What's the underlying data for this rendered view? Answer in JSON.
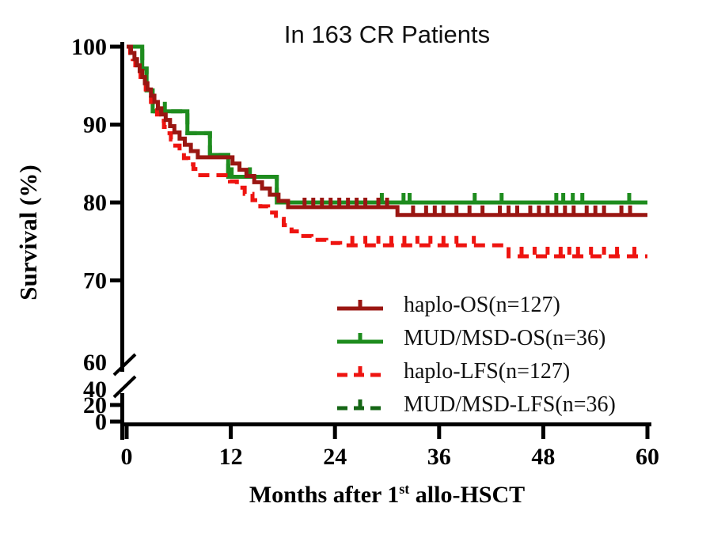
{
  "title": "In 163 CR Patients",
  "axes": {
    "ylabel": "Survival (%)",
    "xlabel_prefix": "Months after 1",
    "xlabel_sup": "st",
    "xlabel_suffix": " allo-HSCT",
    "x_ticks": [
      0,
      12,
      24,
      36,
      48,
      60
    ],
    "y_ticks_main": [
      100,
      90,
      80,
      70,
      60
    ],
    "y_ticks_compressed": [
      40,
      20,
      0
    ],
    "y_axis_break": true,
    "axis_color": "#000000",
    "background": "#ffffff"
  },
  "chart_data": {
    "type": "line",
    "subtype": "kaplan-meier-step",
    "title": "In 163 CR Patients",
    "xlabel": "Months after 1st allo-HSCT",
    "ylabel": "Survival (%)",
    "x_range": [
      0,
      60
    ],
    "y_range_displayed": [
      60,
      100
    ],
    "grid": false,
    "legend_position": "inside-bottom-right",
    "series": [
      {
        "label": "haplo-OS(n=127)",
        "color": "#9a1612",
        "dash": false,
        "steps": [
          [
            0,
            100
          ],
          [
            0.5,
            99.2
          ],
          [
            0.9,
            98.4
          ],
          [
            1.2,
            97.6
          ],
          [
            1.5,
            96.9
          ],
          [
            1.8,
            96.1
          ],
          [
            2.1,
            95.3
          ],
          [
            2.4,
            94.5
          ],
          [
            2.8,
            93.7
          ],
          [
            3.2,
            92.9
          ],
          [
            3.6,
            92.1
          ],
          [
            4.0,
            91.3
          ],
          [
            4.5,
            90.6
          ],
          [
            5.0,
            89.8
          ],
          [
            5.5,
            89.0
          ],
          [
            6.1,
            88.2
          ],
          [
            6.7,
            87.4
          ],
          [
            7.4,
            86.6
          ],
          [
            8.2,
            85.8
          ],
          [
            12.2,
            85.0
          ],
          [
            13.0,
            84.2
          ],
          [
            13.8,
            83.4
          ],
          [
            14.7,
            82.6
          ],
          [
            15.6,
            81.8
          ],
          [
            16.5,
            81.0
          ],
          [
            17.5,
            80.2
          ],
          [
            18.6,
            79.4
          ],
          [
            31.2,
            78.4
          ]
        ],
        "censors": [
          [
            20.5,
            79.4
          ],
          [
            21.5,
            79.4
          ],
          [
            22.5,
            79.4
          ],
          [
            23.5,
            79.4
          ],
          [
            24.5,
            79.4
          ],
          [
            25.5,
            79.4
          ],
          [
            26.5,
            79.4
          ],
          [
            27.5,
            79.4
          ],
          [
            29,
            79.4
          ],
          [
            30,
            79.4
          ],
          [
            33,
            78.4
          ],
          [
            34.5,
            78.4
          ],
          [
            35.5,
            78.4
          ],
          [
            36.5,
            78.4
          ],
          [
            38,
            78.4
          ],
          [
            39.5,
            78.4
          ],
          [
            41,
            78.4
          ],
          [
            43,
            78.4
          ],
          [
            44,
            78.4
          ],
          [
            45,
            78.4
          ],
          [
            46.5,
            78.4
          ],
          [
            47.5,
            78.4
          ],
          [
            48.5,
            78.4
          ],
          [
            49.5,
            78.4
          ],
          [
            50.5,
            78.4
          ],
          [
            51.5,
            78.4
          ],
          [
            53,
            78.4
          ],
          [
            54,
            78.4
          ],
          [
            55,
            78.4
          ],
          [
            57,
            78.4
          ],
          [
            58,
            78.4
          ]
        ]
      },
      {
        "label": "MUD/MSD-OS(n=36)",
        "color": "#1e8c1e",
        "dash": false,
        "steps": [
          [
            0,
            100
          ],
          [
            1.8,
            97.2
          ],
          [
            2.3,
            94.4
          ],
          [
            3.0,
            91.7
          ],
          [
            7.0,
            88.9
          ],
          [
            9.6,
            86.1
          ],
          [
            11.7,
            83.3
          ],
          [
            17.3,
            80.0
          ]
        ],
        "censors": [
          [
            4.4,
            91.7
          ],
          [
            12.1,
            83.3
          ],
          [
            14.2,
            83.3
          ],
          [
            29.4,
            80.0
          ],
          [
            31.9,
            80.0
          ],
          [
            32.6,
            80.0
          ],
          [
            40.1,
            80.0
          ],
          [
            43.2,
            80.0
          ],
          [
            49.5,
            80.0
          ],
          [
            50.3,
            80.0
          ],
          [
            51.4,
            80.0
          ],
          [
            52.5,
            80.0
          ],
          [
            57.9,
            80.0
          ]
        ]
      },
      {
        "label": "haplo-LFS(n=127)",
        "color": "#ee1410",
        "dash": true,
        "steps": [
          [
            0,
            100
          ],
          [
            0.4,
            99.2
          ],
          [
            0.7,
            98.4
          ],
          [
            1.0,
            97.6
          ],
          [
            1.3,
            96.8
          ],
          [
            1.6,
            96.1
          ],
          [
            1.9,
            95.3
          ],
          [
            2.2,
            94.5
          ],
          [
            2.5,
            93.7
          ],
          [
            2.8,
            92.9
          ],
          [
            3.1,
            92.1
          ],
          [
            3.5,
            91.3
          ],
          [
            3.9,
            90.5
          ],
          [
            4.3,
            89.7
          ],
          [
            4.7,
            88.9
          ],
          [
            5.1,
            88.1
          ],
          [
            5.6,
            87.3
          ],
          [
            6.1,
            86.5
          ],
          [
            6.6,
            85.7
          ],
          [
            7.1,
            84.9
          ],
          [
            7.7,
            84.3
          ],
          [
            8.2,
            83.5
          ],
          [
            11.9,
            82.7
          ],
          [
            12.7,
            81.9
          ],
          [
            13.6,
            81.1
          ],
          [
            14.5,
            80.3
          ],
          [
            15.4,
            79.5
          ],
          [
            16.3,
            78.7
          ],
          [
            17.2,
            77.9
          ],
          [
            18.1,
            77.1
          ],
          [
            19.0,
            76.3
          ],
          [
            20.0,
            75.7
          ],
          [
            21.3,
            75.2
          ],
          [
            23.0,
            74.8
          ],
          [
            24.6,
            74.5
          ],
          [
            44.0,
            73.1
          ]
        ],
        "censors": [
          [
            26,
            74.5
          ],
          [
            27.5,
            74.5
          ],
          [
            29,
            74.5
          ],
          [
            30.5,
            74.5
          ],
          [
            32,
            74.5
          ],
          [
            33.5,
            74.5
          ],
          [
            35,
            74.5
          ],
          [
            36.5,
            74.5
          ],
          [
            38,
            74.5
          ],
          [
            40,
            74.5
          ],
          [
            45.5,
            73.1
          ],
          [
            47,
            73.1
          ],
          [
            48.5,
            73.1
          ],
          [
            50,
            73.1
          ],
          [
            51,
            73.1
          ],
          [
            52,
            73.1
          ],
          [
            53.5,
            73.1
          ],
          [
            55,
            73.1
          ],
          [
            56.5,
            73.1
          ],
          [
            58.5,
            73.1
          ]
        ]
      },
      {
        "label": "MUD/MSD-LFS(n=36)",
        "color": "#156615",
        "dash": true,
        "steps": [
          [
            0,
            100
          ],
          [
            1.8,
            97.2
          ],
          [
            2.3,
            94.4
          ],
          [
            3.0,
            91.7
          ],
          [
            7.0,
            88.9
          ],
          [
            9.6,
            86.1
          ],
          [
            11.7,
            83.3
          ],
          [
            17.3,
            80.0
          ]
        ],
        "censors": []
      }
    ],
    "note": "MUD/MSD-LFS dashed curve coincides with MUD/MSD-OS curve and is hidden beneath it in the plot"
  }
}
